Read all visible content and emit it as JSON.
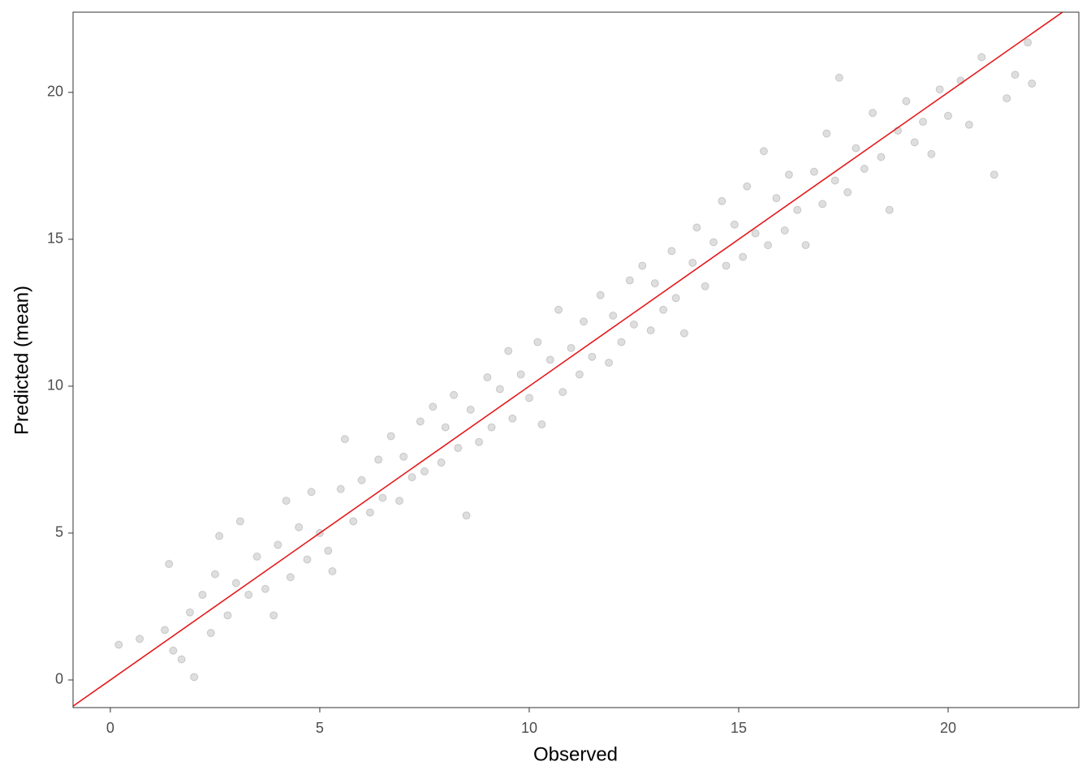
{
  "chart_data": {
    "type": "scatter",
    "x_label": "Observed",
    "y_label": "Predicted (mean)",
    "xlim": [
      -0.89,
      23.12
    ],
    "ylim": [
      -0.94,
      22.73
    ],
    "xticks": [
      0,
      5,
      10,
      15,
      20
    ],
    "yticks": [
      0,
      5,
      10,
      15,
      20
    ],
    "grid": false,
    "point_color": "#000000",
    "point_opacity": 0.13,
    "reference_line": {
      "slope": 1,
      "intercept": 0,
      "color": "#e41a1c"
    },
    "series": [
      {
        "name": null,
        "color": "#000000",
        "x": [
          0.2,
          0.7,
          1.3,
          1.4,
          1.5,
          1.7,
          2.0,
          1.9,
          2.2,
          2.4,
          2.5,
          2.6,
          2.8,
          3.0,
          3.1,
          3.3,
          3.5,
          3.7,
          3.9,
          4.0,
          4.2,
          4.3,
          4.5,
          4.7,
          4.8,
          5.0,
          5.2,
          5.3,
          5.5,
          5.6,
          5.8,
          6.0,
          6.2,
          6.4,
          6.5,
          6.7,
          6.9,
          7.0,
          7.2,
          7.4,
          7.5,
          7.7,
          7.9,
          8.0,
          8.2,
          8.3,
          8.5,
          8.6,
          8.8,
          9.0,
          9.1,
          9.3,
          9.5,
          9.6,
          9.8,
          10.0,
          10.2,
          10.3,
          10.5,
          10.7,
          10.8,
          11.0,
          11.2,
          11.3,
          11.5,
          11.7,
          11.9,
          12.0,
          12.2,
          12.4,
          12.5,
          12.7,
          12.9,
          13.0,
          13.2,
          13.4,
          13.5,
          13.7,
          13.9,
          14.0,
          14.2,
          14.4,
          14.6,
          14.7,
          14.9,
          15.1,
          15.2,
          15.4,
          15.6,
          15.7,
          15.9,
          16.1,
          16.2,
          16.4,
          16.6,
          16.8,
          17.0,
          17.1,
          17.3,
          17.4,
          17.6,
          17.8,
          18.0,
          18.2,
          18.4,
          18.6,
          18.8,
          19.0,
          19.2,
          19.4,
          19.6,
          19.8,
          20.0,
          20.3,
          20.5,
          20.8,
          21.1,
          21.4,
          21.6,
          21.9,
          22.0
        ],
        "values": [
          1.2,
          1.4,
          1.7,
          3.95,
          1.0,
          0.7,
          0.1,
          2.3,
          2.9,
          1.6,
          3.6,
          4.9,
          2.2,
          3.3,
          5.4,
          2.9,
          4.2,
          3.1,
          2.2,
          4.6,
          6.1,
          3.5,
          5.2,
          4.1,
          6.4,
          5.0,
          4.4,
          3.7,
          6.5,
          8.2,
          5.4,
          6.8,
          5.7,
          7.5,
          6.2,
          8.3,
          6.1,
          7.6,
          6.9,
          8.8,
          7.1,
          9.3,
          7.4,
          8.6,
          9.7,
          7.9,
          5.6,
          9.2,
          8.1,
          10.3,
          8.6,
          9.9,
          11.2,
          8.9,
          10.4,
          9.6,
          11.5,
          8.7,
          10.9,
          12.6,
          9.8,
          11.3,
          10.4,
          12.2,
          11.0,
          13.1,
          10.8,
          12.4,
          11.5,
          13.6,
          12.1,
          14.1,
          11.9,
          13.5,
          12.6,
          14.6,
          13.0,
          11.8,
          14.2,
          15.4,
          13.4,
          14.9,
          16.3,
          14.1,
          15.5,
          14.4,
          16.8,
          15.2,
          18.0,
          14.8,
          16.4,
          15.3,
          17.2,
          16.0,
          14.8,
          17.3,
          16.2,
          18.6,
          17.0,
          20.5,
          16.6,
          18.1,
          17.4,
          19.3,
          17.8,
          16.0,
          18.7,
          19.7,
          18.3,
          19.0,
          17.9,
          20.1,
          19.2,
          20.4,
          18.9,
          21.2,
          17.2,
          19.8,
          20.6,
          21.7,
          20.3
        ]
      }
    ]
  }
}
